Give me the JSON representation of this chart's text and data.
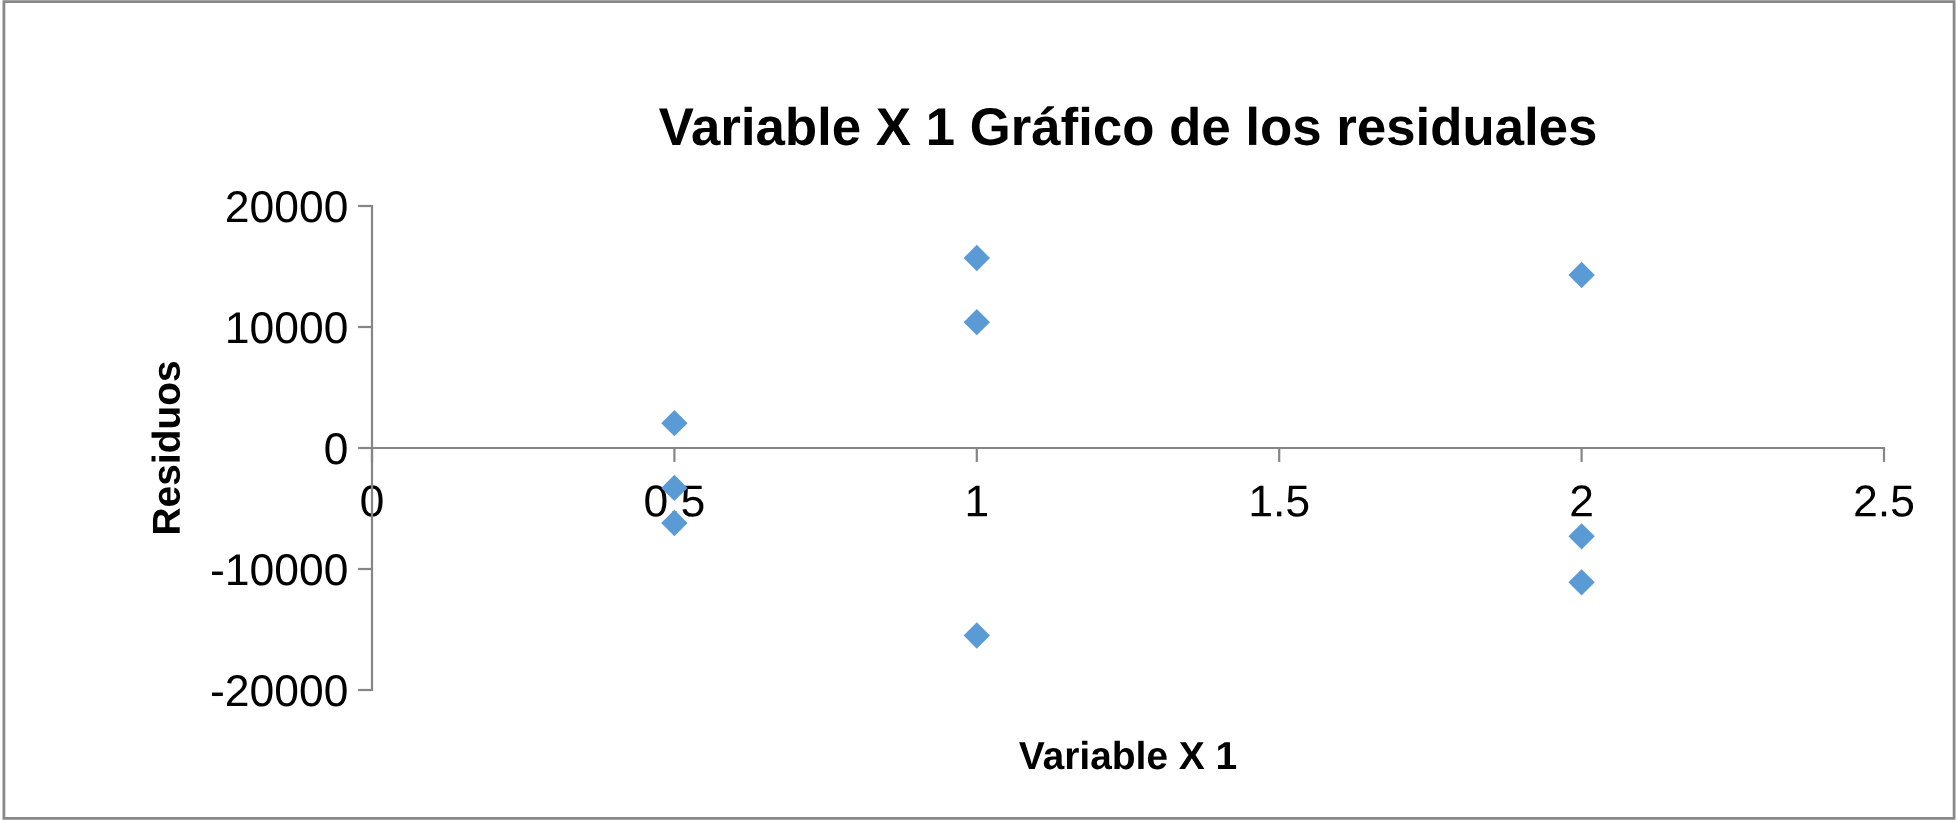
{
  "chart_data": {
    "type": "scatter",
    "title": "Variable X 1 Gráfico de los residuales",
    "xlabel": "Variable X 1",
    "ylabel": "Residuos",
    "x": [
      0.5,
      0.5,
      0.5,
      1,
      1,
      1,
      2,
      2,
      2
    ],
    "series": [
      {
        "color": "#5b9bd5",
        "values": [
          2050,
          -3300,
          -6200,
          15700,
          10400,
          -15500,
          14300,
          -7300,
          -11100
        ]
      }
    ],
    "xlim": [
      0,
      2.5
    ],
    "xticks": [
      0,
      0.5,
      1,
      1.5,
      2,
      2.5
    ],
    "ylim": [
      -20000,
      20000
    ],
    "yticks": [
      -20000,
      -10000,
      0,
      10000,
      20000
    ],
    "marker": "diamond",
    "grid": false,
    "legend": false
  }
}
